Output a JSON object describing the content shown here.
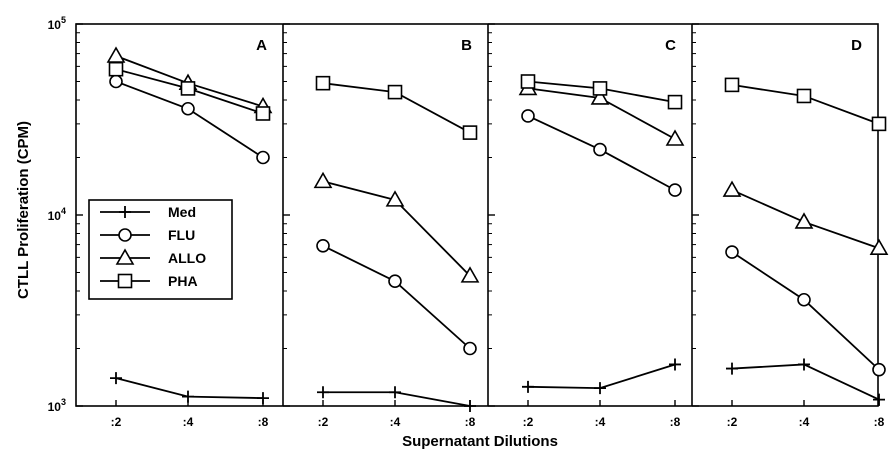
{
  "chart_data": {
    "type": "line",
    "ylabel": "CTLL Proliferation (CPM)",
    "xlabel": "Supernatant Dilutions",
    "y_scale": "log",
    "ylim": [
      1000,
      100000
    ],
    "y_ticks": [
      {
        "value": 100000,
        "base": "10",
        "exp": "5"
      },
      {
        "value": 10000,
        "base": "10",
        "exp": "4"
      },
      {
        "value": 1000,
        "base": "10",
        "exp": "3"
      }
    ],
    "categories": [
      ":2",
      ":4",
      ":8"
    ],
    "legend": {
      "position": "center-left (inside panel A)",
      "entries": [
        {
          "name": "Med",
          "marker": "plus"
        },
        {
          "name": "FLU",
          "marker": "circle"
        },
        {
          "name": "ALLO",
          "marker": "triangle"
        },
        {
          "name": "PHA",
          "marker": "square"
        }
      ]
    },
    "panels": [
      {
        "label": "A",
        "series": [
          {
            "name": "Med",
            "values": [
              1400,
              1120,
              1100
            ]
          },
          {
            "name": "FLU",
            "values": [
              50000,
              36000,
              20000
            ]
          },
          {
            "name": "ALLO",
            "values": [
              68000,
              49000,
              37000
            ]
          },
          {
            "name": "PHA",
            "values": [
              58000,
              46000,
              34000
            ]
          }
        ]
      },
      {
        "label": "B",
        "series": [
          {
            "name": "Med",
            "values": [
              1180,
              1180,
              1000
            ]
          },
          {
            "name": "FLU",
            "values": [
              6900,
              4500,
              2000
            ]
          },
          {
            "name": "ALLO",
            "values": [
              15000,
              12000,
              4800
            ]
          },
          {
            "name": "PHA",
            "values": [
              49000,
              44000,
              27000
            ]
          }
        ]
      },
      {
        "label": "C",
        "series": [
          {
            "name": "Med",
            "values": [
              1260,
              1240,
              1650
            ]
          },
          {
            "name": "FLU",
            "values": [
              33000,
              22000,
              13500
            ]
          },
          {
            "name": "ALLO",
            "values": [
              46000,
              41000,
              25000
            ]
          },
          {
            "name": "PHA",
            "values": [
              50000,
              46000,
              39000
            ]
          }
        ]
      },
      {
        "label": "D",
        "series": [
          {
            "name": "Med",
            "values": [
              1570,
              1650,
              1080
            ]
          },
          {
            "name": "FLU",
            "values": [
              6400,
              3600,
              1550
            ]
          },
          {
            "name": "ALLO",
            "values": [
              13500,
              9200,
              6700
            ]
          },
          {
            "name": "PHA",
            "values": [
              48000,
              42000,
              30000
            ]
          }
        ]
      }
    ]
  }
}
